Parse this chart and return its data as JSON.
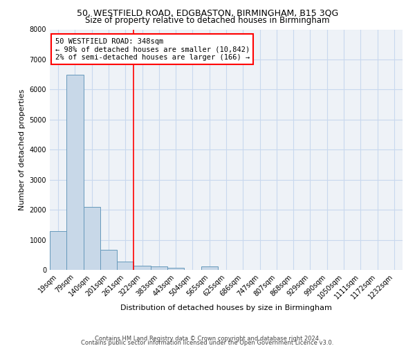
{
  "title1": "50, WESTFIELD ROAD, EDGBASTON, BIRMINGHAM, B15 3QG",
  "title2": "Size of property relative to detached houses in Birmingham",
  "xlabel": "Distribution of detached houses by size in Birmingham",
  "ylabel": "Number of detached properties",
  "footnote1": "Contains HM Land Registry data © Crown copyright and database right 2024.",
  "footnote2": "Contains public sector information licensed under the Open Government Licence v3.0.",
  "annotation_line1": "50 WESTFIELD ROAD: 348sqm",
  "annotation_line2": "← 98% of detached houses are smaller (10,842)",
  "annotation_line3": "2% of semi-detached houses are larger (166) →",
  "bar_color": "#c8d8e8",
  "bar_edge_color": "#6699bb",
  "grid_color": "#c8d8ee",
  "bg_color": "#eef2f7",
  "categories": [
    "19sqm",
    "79sqm",
    "140sqm",
    "201sqm",
    "261sqm",
    "322sqm",
    "383sqm",
    "443sqm",
    "504sqm",
    "565sqm",
    "625sqm",
    "686sqm",
    "747sqm",
    "807sqm",
    "868sqm",
    "929sqm",
    "990sqm",
    "1050sqm",
    "1111sqm",
    "1172sqm",
    "1232sqm"
  ],
  "values": [
    1280,
    6500,
    2090,
    670,
    280,
    130,
    110,
    75,
    0,
    110,
    0,
    0,
    0,
    0,
    0,
    0,
    0,
    0,
    0,
    0,
    0
  ],
  "ylim": [
    0,
    8000
  ],
  "yticks": [
    0,
    1000,
    2000,
    3000,
    4000,
    5000,
    6000,
    7000,
    8000
  ],
  "red_line_index": 4.5,
  "title1_fontsize": 9,
  "title2_fontsize": 8.5,
  "xlabel_fontsize": 8,
  "ylabel_fontsize": 8,
  "tick_fontsize": 7,
  "annotation_fontsize": 7.5,
  "footnote_fontsize": 6
}
